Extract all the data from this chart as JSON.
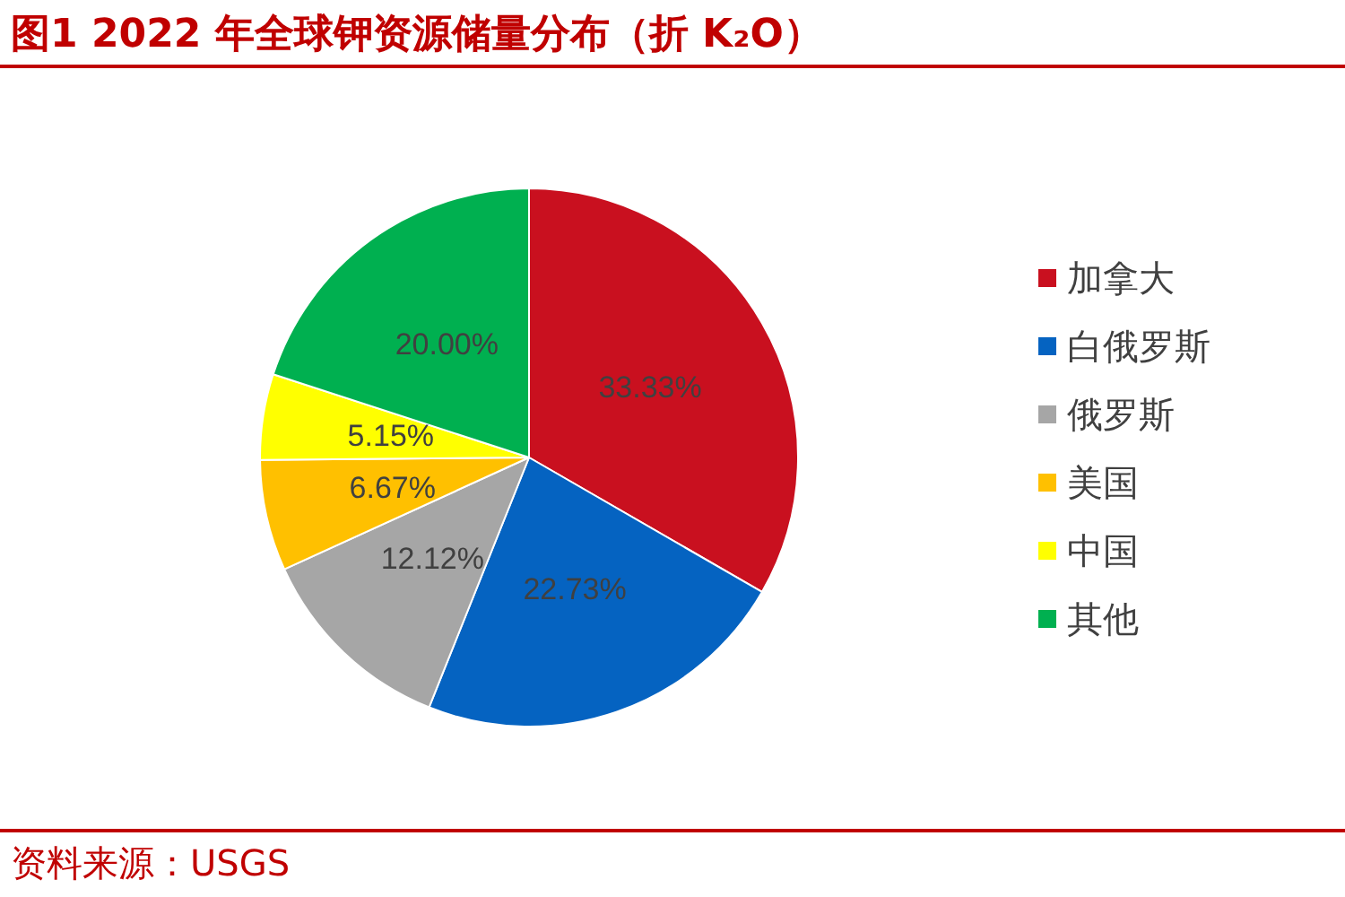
{
  "chart_data": {
    "type": "pie",
    "title": "图1  2022 年全球钾资源储量分布（折 K₂O）",
    "categories": [
      "加拿大",
      "白俄罗斯",
      "俄罗斯",
      "美国",
      "中国",
      "其他"
    ],
    "values": [
      33.33,
      22.73,
      12.12,
      6.67,
      5.15,
      20.0
    ],
    "colors": [
      "#c9101f",
      "#0563c1",
      "#a6a6a6",
      "#ffc000",
      "#ffff00",
      "#00b050"
    ],
    "value_labels": [
      "33.33%",
      "22.73%",
      "12.12%",
      "6.67%",
      "5.15%",
      "20.00%"
    ],
    "legend": "right",
    "annotations": [
      "资料来源：USGS"
    ]
  }
}
